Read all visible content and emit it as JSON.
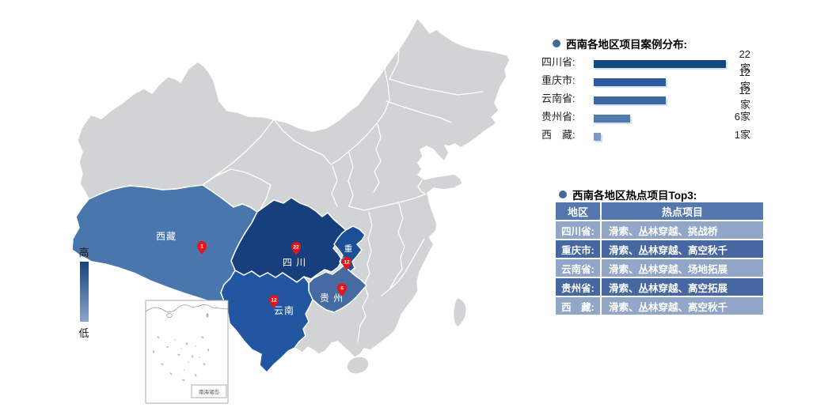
{
  "titles": {
    "bar_section": "西南各地区项目案例分布:",
    "table_section": "西南各地区热点项目Top3:"
  },
  "legend": {
    "high": "高",
    "low": "低"
  },
  "map": {
    "inset_label": "南海诸岛",
    "provinces": [
      {
        "key": "xizang",
        "label": "西藏",
        "pin": "1"
      },
      {
        "key": "sichuan",
        "label": "四 川",
        "pin": "22"
      },
      {
        "key": "chongqing",
        "label_line1": "重",
        "label_line2": "庆",
        "pin": "12"
      },
      {
        "key": "guizhou",
        "label": "贵 州",
        "pin": "6"
      },
      {
        "key": "yunnan",
        "label": "云南",
        "pin": "12"
      }
    ]
  },
  "chart_data": {
    "type": "bar",
    "orientation": "horizontal",
    "title": "西南各地区项目案例分布:",
    "categories": [
      "四川省",
      "重庆市",
      "云南省",
      "贵州省",
      "西藏"
    ],
    "values": [
      22,
      12,
      12,
      6,
      1
    ],
    "unit": "家",
    "xlim": [
      0,
      22
    ],
    "rows": [
      {
        "label": "四川省:",
        "value": 22,
        "count": "22家",
        "color": "#14497f"
      },
      {
        "label": "重庆市:",
        "value": 12,
        "count": "12家",
        "color": "#2a5a9b"
      },
      {
        "label": "云南省:",
        "value": 12,
        "count": "12家",
        "color": "#3c67a2"
      },
      {
        "label": "贵州省:",
        "value": 6,
        "count": "6家",
        "color": "#537aae"
      },
      {
        "label": "西　藏:",
        "value": 1,
        "count": "1家",
        "color": "#7e9ac4"
      }
    ]
  },
  "table": {
    "title": "西南各地区热点项目Top3:",
    "headers": [
      "地区",
      "热点项目"
    ],
    "rows": [
      {
        "region": "四川省:",
        "projects": "滑索、丛林穿越、挑战桥"
      },
      {
        "region": "重庆市:",
        "projects": "滑索、丛林穿越、高空秋千"
      },
      {
        "region": "云南省:",
        "projects": "滑索、丛林穿越、场地拓展"
      },
      {
        "region": "贵州省:",
        "projects": "滑索、丛林穿越、高空拓展"
      },
      {
        "region": "西　藏:",
        "projects": "滑索、丛林穿越、高空秋千"
      }
    ]
  },
  "colors": {
    "map_default": "#d2d3d5",
    "xizang": "#4a76ae",
    "sichuan": "#173f7d",
    "chongqing": "#1c4f96",
    "yunnan": "#2256a0",
    "guizhou": "#466ba3",
    "pin_red": "#e8121a",
    "table_header": "#5478ad",
    "table_row_dark": "#46679f",
    "table_row_light": "#92a7c7",
    "bullet": "#46699c",
    "legend_top": "#16437e",
    "legend_bottom": "#8aa6cc"
  }
}
